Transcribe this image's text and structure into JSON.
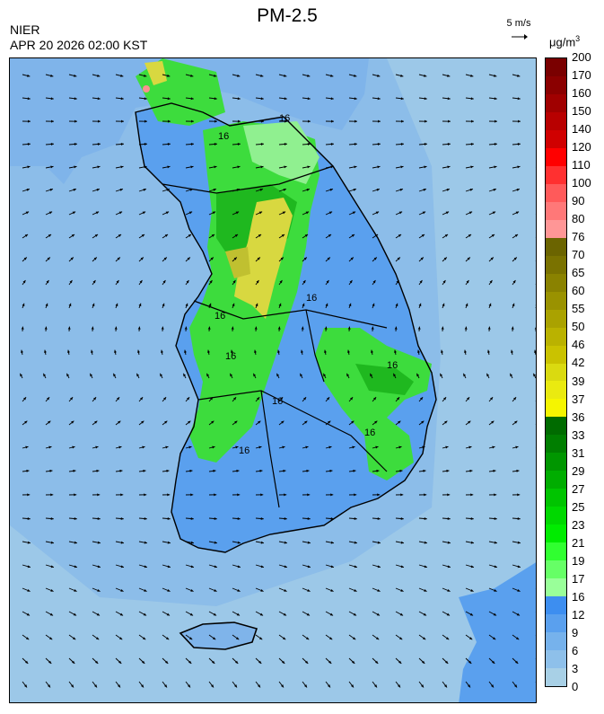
{
  "header": {
    "title": "PM-2.5",
    "organization": "NIER",
    "datetime": "APR 20 2026 02:00 KST",
    "wind_reference": "5 m/s",
    "unit_main": "μg/m",
    "unit_sup": "3"
  },
  "map": {
    "variable": "PM-2.5 concentration",
    "contour_labels": [
      "16",
      "16",
      "16",
      "16",
      "16",
      "16",
      "16",
      "16",
      "16"
    ],
    "colors": {
      "sea_low": "#9cc8e8",
      "land_low": "#7fb4ea",
      "blue_mid": "#5aa0ee",
      "green_light": "#90f090",
      "green": "#3ddc3d",
      "green_dark": "#1fb81f",
      "yellow": "#d8d840",
      "yellow_dark": "#c0c030",
      "pink": "#ff9090"
    }
  },
  "legend": {
    "labels": [
      "200",
      "170",
      "160",
      "150",
      "140",
      "120",
      "110",
      "100",
      "90",
      "80",
      "76",
      "70",
      "65",
      "60",
      "55",
      "50",
      "46",
      "42",
      "39",
      "37",
      "36",
      "33",
      "31",
      "29",
      "27",
      "25",
      "23",
      "21",
      "19",
      "17",
      "16",
      "12",
      "9",
      "6",
      "3",
      "0"
    ],
    "colors": [
      "#7a0000",
      "#8b0000",
      "#a00000",
      "#b80000",
      "#d00000",
      "#ff0000",
      "#ff3030",
      "#ff5a5a",
      "#ff7878",
      "#ff9696",
      "#6b6400",
      "#7a7200",
      "#8a8200",
      "#9a9200",
      "#aaa200",
      "#bab200",
      "#cac200",
      "#dada10",
      "#eaea10",
      "#f5f500",
      "#006b00",
      "#007e00",
      "#009600",
      "#00ad00",
      "#00c400",
      "#00d800",
      "#00ec00",
      "#30ff30",
      "#66ff66",
      "#99ff99",
      "#3d8ef0",
      "#5aa0ee",
      "#76b2ec",
      "#8ec0ea",
      "#a8d0e6"
    ]
  }
}
